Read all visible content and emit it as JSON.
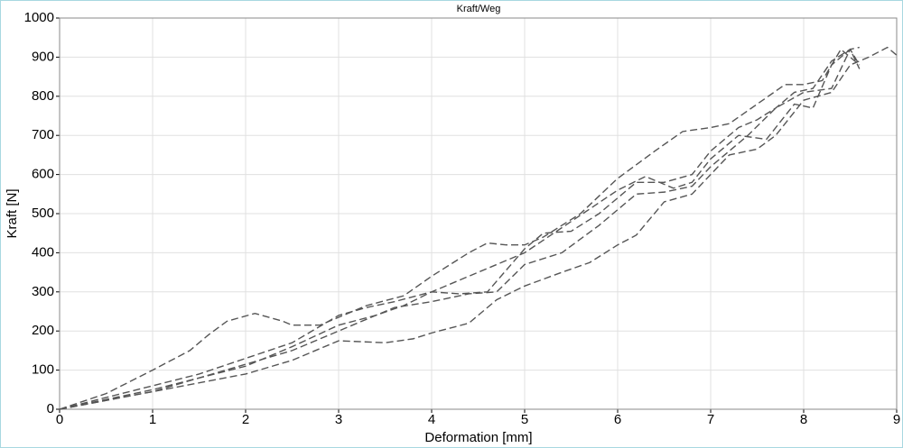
{
  "chart_data": {
    "type": "line",
    "title": "Kraft/Weg",
    "x_label": "Deformation [mm]",
    "y_label": "Kraft [N]",
    "xlim": [
      0,
      9
    ],
    "xticks": [
      0,
      1,
      2,
      3,
      4,
      5,
      6,
      7,
      8,
      9
    ],
    "ylim": [
      0,
      1000
    ],
    "yticks": [
      0,
      100,
      200,
      300,
      400,
      500,
      600,
      700,
      800,
      900,
      1000
    ],
    "grid": true,
    "line_style": "dashed",
    "series": [
      {
        "color": "#555555",
        "x": [
          0,
          0.5,
          1,
          1.4,
          1.6,
          1.8,
          2.1,
          2.4,
          2.5,
          2.8,
          3,
          3.3,
          3.7,
          4,
          4.4,
          4.6,
          4.8,
          5,
          5.2,
          5.6,
          6,
          6.4,
          6.7,
          7,
          7.2,
          7.5,
          7.8,
          8,
          8.2,
          8.4,
          8.6
        ],
        "values": [
          0,
          40,
          100,
          150,
          190,
          225,
          245,
          225,
          215,
          215,
          235,
          265,
          290,
          340,
          400,
          425,
          420,
          420,
          440,
          500,
          590,
          660,
          710,
          720,
          730,
          780,
          830,
          830,
          840,
          920,
          880
        ]
      },
      {
        "color": "#555555",
        "x": [
          0,
          1,
          2,
          2.5,
          3,
          3.5,
          3.8,
          4,
          4.4,
          4.7,
          5,
          5.4,
          5.7,
          6,
          6.2,
          6.5,
          6.8,
          7,
          7.2,
          7.5,
          7.7,
          8,
          8.3,
          8.5,
          8.7,
          8.9,
          9
        ],
        "values": [
          0,
          45,
          90,
          125,
          175,
          170,
          180,
          195,
          220,
          280,
          315,
          350,
          375,
          420,
          445,
          530,
          550,
          600,
          650,
          665,
          700,
          790,
          810,
          880,
          900,
          925,
          905
        ]
      },
      {
        "color": "#555555",
        "x": [
          0,
          1,
          1.5,
          2,
          2.5,
          3,
          3.3,
          3.6,
          4,
          4.5,
          5,
          5.5,
          6,
          6.3,
          6.6,
          6.8,
          7,
          7.3,
          7.6,
          7.9,
          8.1,
          8.3,
          8.5,
          8.6
        ],
        "values": [
          0,
          60,
          90,
          130,
          170,
          240,
          260,
          275,
          300,
          350,
          400,
          480,
          560,
          595,
          565,
          580,
          640,
          700,
          690,
          780,
          770,
          880,
          920,
          870
        ]
      },
      {
        "color": "#555555",
        "x": [
          0,
          1,
          2,
          2.5,
          3,
          3.3,
          3.6,
          4,
          4.4,
          4.7,
          5,
          5.4,
          5.8,
          6.2,
          6.5,
          6.8,
          7,
          7.4,
          7.7,
          8,
          8.3,
          8.5,
          8.6
        ],
        "values": [
          0,
          45,
          115,
          150,
          200,
          230,
          260,
          275,
          295,
          300,
          370,
          400,
          470,
          550,
          555,
          570,
          620,
          700,
          770,
          810,
          820,
          920,
          925
        ]
      },
      {
        "color": "#555555",
        "x": [
          0,
          1,
          2,
          2.5,
          3,
          3.4,
          3.7,
          4,
          4.3,
          4.6,
          5,
          5.2,
          5.5,
          5.8,
          6,
          6.2,
          6.5,
          6.8,
          7,
          7.3,
          7.5,
          7.7,
          7.9,
          8.1,
          8.3,
          8.5,
          8.6
        ],
        "values": [
          0,
          50,
          110,
          160,
          215,
          240,
          265,
          300,
          295,
          300,
          410,
          450,
          455,
          500,
          540,
          580,
          580,
          600,
          660,
          720,
          740,
          770,
          810,
          820,
          890,
          920,
          880
        ]
      }
    ]
  }
}
